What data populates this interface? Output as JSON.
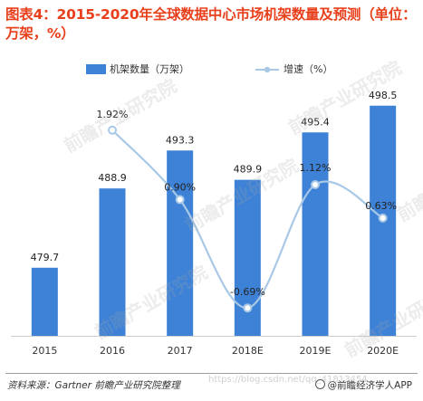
{
  "title": "图表4：2015-2020年全球数据中心市场机架数量及预测（单位：万架，%）",
  "source": "资料来源：Gartner 前瞻产业研究院整理",
  "url_watermark": "https://blog.csdn.net/qq_41813454",
  "app_brand": "@前瞻经济学人APP",
  "watermark_text": "前瞻产业研究院",
  "colors": {
    "bar": "#3d82d6",
    "line": "#a8c8e6",
    "point": "#a8c8e6",
    "title": "#e8401c"
  },
  "chart_data": {
    "type": "bar",
    "categories": [
      "2015",
      "2016",
      "2017",
      "2018E",
      "2019E",
      "2020E"
    ],
    "series": [
      {
        "name": "机架数量（万架）",
        "type": "bar",
        "values": [
          479.7,
          488.9,
          493.3,
          489.9,
          495.4,
          498.5
        ],
        "labels": [
          "479.7",
          "488.9",
          "493.3",
          "489.9",
          "495.4",
          "498.5"
        ]
      },
      {
        "name": "增速（%）",
        "type": "line",
        "values": [
          null,
          1.92,
          0.9,
          -0.69,
          1.12,
          0.63
        ],
        "labels": [
          "",
          "1.92%",
          "0.90%",
          "-0.69%",
          "1.12%",
          "0.63%"
        ]
      }
    ],
    "legend": "top-right",
    "grid": false
  }
}
